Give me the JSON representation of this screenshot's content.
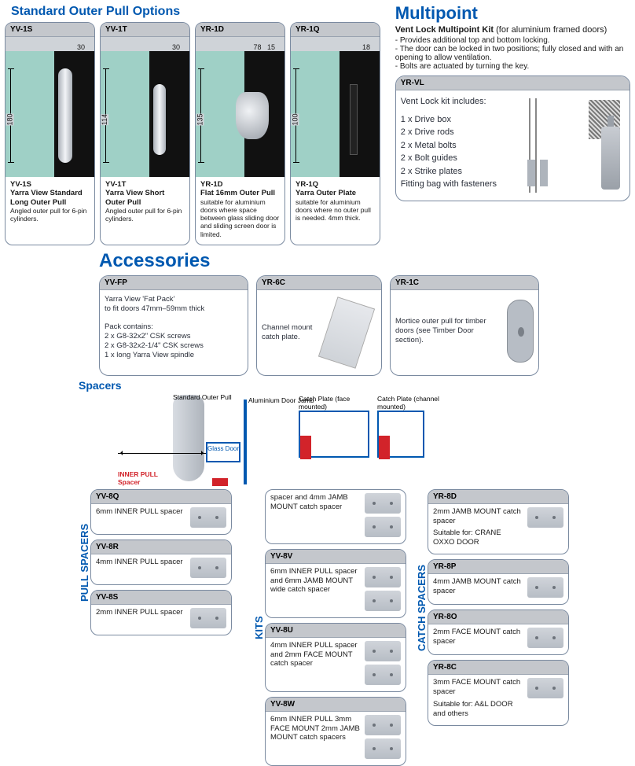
{
  "colors": {
    "brand_blue": "#0058b0",
    "panel_border": "#7a8aa0",
    "head_bg": "#c4c7cc",
    "glass": "#9fd0c6",
    "door": "#111111",
    "red": "#d2232a",
    "metal_light": "#f2f4f7",
    "metal_dark": "#aab0b8"
  },
  "sections": {
    "outer_title": "Standard Outer Pull Options",
    "multi_title": "Multipoint",
    "acc_title": "Accessories",
    "spacers_title": "Spacers"
  },
  "outer_pulls": [
    {
      "code": "YV-1S",
      "name": "Yarra View Standard Long Outer Pull",
      "note": "Angled outer pull for 6-pin cylinders.",
      "dim_v": "180",
      "dim_h": "30",
      "handle": "handle1"
    },
    {
      "code": "YV-1T",
      "name": "Yarra View Short Outer Pull",
      "note": "Angled outer pull for 6-pin cylinders.",
      "dim_v": "114",
      "dim_h": "30",
      "handle": "handle2"
    },
    {
      "code": "YR-1D",
      "name": "Flat 16mm Outer Pull",
      "note": "suitable for aluminium doors where space between glass sliding door and sliding screen door is limited.",
      "dim_v": "135",
      "dim_h": "78",
      "dim_h2": "15",
      "handle": "handle3"
    },
    {
      "code": "YR-1Q",
      "name": "Yarra Outer Plate",
      "note": "suitable for aluminium doors where no outer pull is needed. 4mm thick.",
      "dim_v": "100",
      "dim_h": "18",
      "handle": "handle4"
    }
  ],
  "multipoint": {
    "subtitle_bold": "Vent Lock Multipoint Kit",
    "subtitle_rest": " (for aluminium framed doors)",
    "bullets": [
      "Provides additional top and bottom locking.",
      "The door can be locked in two positions; fully closed and with an opening to allow ventilation.",
      "Bolts are actuated by turning the key."
    ],
    "card_code": "YR-VL",
    "includes_title": "Vent Lock kit includes:",
    "includes": [
      "1 x Drive box",
      "2 x Drive rods",
      "2 x Metal bolts",
      "2 x Bolt guides",
      "2 x Strike plates",
      "Fitting bag with fasteners"
    ]
  },
  "accessories": [
    {
      "code": "YV-FP",
      "lines": [
        "Yarra View 'Fat Pack'",
        "to fit doors 47mm–59mm thick",
        "",
        "Pack contains:",
        "2 x G8-32x2\" CSK screws",
        "2 x G8-32x2-1/4\" CSK screws",
        "1 x long Yarra View spindle"
      ],
      "image": "none"
    },
    {
      "code": "YR-6C",
      "lines": [
        "Channel mount",
        "catch plate."
      ],
      "image": "catchplate"
    },
    {
      "code": "YR-1C",
      "lines": [
        "Mortice outer pull for timber",
        "doors (see Timber Door section)."
      ],
      "image": "mortice"
    }
  ],
  "diagram_labels": {
    "std_pull": "Standard Outer Pull",
    "jamb": "Aluminium Door Jamb",
    "catch_face": "Catch Plate (face mounted)",
    "catch_channel": "Catch Plate (channel mounted)",
    "glass": "Glass Door",
    "inner": "INNER PULL Spacer"
  },
  "pull_spacers_label": "PULL SPACERS",
  "kits_label": "KITS",
  "catch_spacers_label": "CATCH SPACERS",
  "pull_spacers": [
    {
      "code": "YV-8Q",
      "text": "6mm INNER PULL spacer"
    },
    {
      "code": "YV-8R",
      "text": "4mm INNER PULL spacer"
    },
    {
      "code": "YV-8S",
      "text": "2mm INNER PULL spacer"
    }
  ],
  "kits": [
    {
      "code": "",
      "text": "spacer and 4mm JAMB MOUNT catch spacer",
      "notop": true
    },
    {
      "code": "YV-8V",
      "text": "6mm INNER PULL spacer and 6mm JAMB MOUNT wide catch spacer"
    },
    {
      "code": "YV-8U",
      "text": "4mm INNER PULL spacer and 2mm FACE MOUNT catch spacer"
    },
    {
      "code": "YV-8W",
      "text": "6mm INNER PULL 3mm FACE MOUNT 2mm JAMB MOUNT catch spacers"
    }
  ],
  "catch_spacers": [
    {
      "code": "YR-8D",
      "text": "2mm JAMB MOUNT catch spacer",
      "suit": "Suitable for: CRANE OXXO DOOR"
    },
    {
      "code": "YR-8P",
      "text": "4mm JAMB MOUNT catch spacer"
    },
    {
      "code": "YR-8O",
      "text": "2mm FACE MOUNT catch spacer"
    },
    {
      "code": "YR-8C",
      "text": "3mm FACE MOUNT catch spacer",
      "suit": "Suitable for: A&L DOOR and others"
    }
  ]
}
